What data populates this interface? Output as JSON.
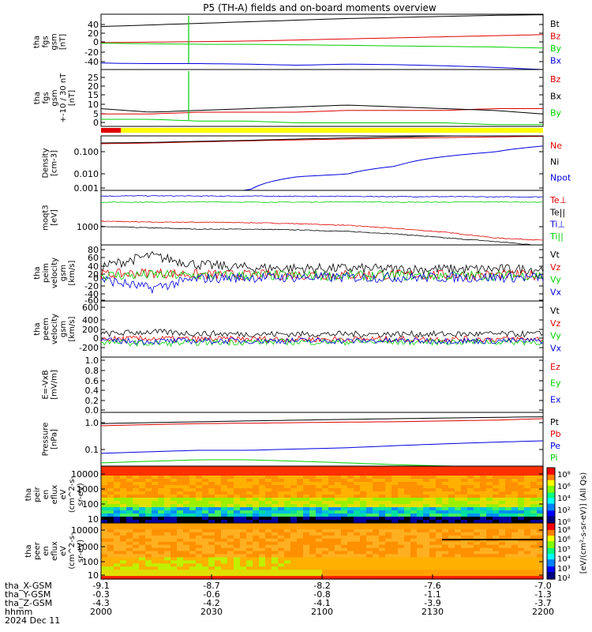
{
  "title": "P5 (TH-A) fields and on-board moments overview",
  "colors": {
    "black": "#000000",
    "red": "#e00000",
    "green": "#00d000",
    "blue": "#0000e0",
    "yellow": "#ffff00"
  },
  "chart_data": [
    {
      "id": "fgs_gsm",
      "type": "line",
      "ylabel": [
        "tha",
        "fgs",
        "gsm",
        "[nT]"
      ],
      "yticks": [
        "40",
        "20",
        "0",
        "-20",
        "-40"
      ],
      "ylim": [
        -48,
        55
      ],
      "series": [
        {
          "name": "Bt",
          "color": "black",
          "values": [
            32,
            35,
            38,
            41,
            44,
            47,
            49,
            51,
            53,
            54
          ]
        },
        {
          "name": "Bz",
          "color": "red",
          "values": [
            2,
            3,
            4,
            5,
            7,
            9,
            11,
            13,
            15,
            17
          ]
        },
        {
          "name": "By",
          "color": "green",
          "values": [
            1,
            0,
            -1,
            -1,
            -2,
            -3,
            -4,
            -5,
            -6,
            -8
          ]
        },
        {
          "name": "Bx",
          "color": "blue",
          "values": [
            -36,
            -37,
            -37,
            -38,
            -40,
            -38,
            -39,
            -41,
            -44,
            -48
          ]
        }
      ]
    },
    {
      "id": "fgs_gsm_zoom",
      "type": "line",
      "ylabel": [
        "tha",
        "fgs",
        "gsm",
        "+-10 / 30 nT",
        "[nT]"
      ],
      "yticks": [
        "25",
        "20",
        "15",
        "10",
        "5",
        "0"
      ],
      "ylim": [
        -3,
        29
      ],
      "series": [
        {
          "name": "Bz",
          "color": "red",
          "values": [
            4,
            4,
            5,
            5,
            5,
            6,
            6,
            6,
            7,
            7
          ]
        },
        {
          "name": "Bx",
          "color": "black",
          "values": [
            7,
            5,
            6,
            7,
            8,
            9,
            8,
            7,
            6,
            4
          ]
        },
        {
          "name": "By",
          "color": "green",
          "values": [
            1,
            1,
            0,
            0,
            -1,
            -1,
            -1,
            -1,
            -2,
            -2
          ]
        }
      ]
    },
    {
      "id": "density",
      "type": "line",
      "ylabel": [
        "Density",
        "[cm-3]"
      ],
      "yticks": [
        "0.100",
        "0.010",
        "0.001"
      ],
      "yscale": "log",
      "series": [
        {
          "name": "Ne",
          "color": "red",
          "values": [
            0.13,
            0.14,
            0.16,
            0.18,
            0.2,
            0.22,
            0.24,
            0.26,
            0.28,
            0.3
          ]
        },
        {
          "name": "Ni",
          "color": "black",
          "values": [
            0.14,
            0.15,
            0.17,
            0.19,
            0.22,
            0.25,
            0.28,
            0.31,
            0.34,
            0.38
          ]
        },
        {
          "name": "Npot",
          "color": "blue",
          "values": [
            0.0005,
            0.0005,
            0.0005,
            0.0006,
            0.003,
            0.004,
            0.01,
            0.03,
            0.05,
            0.1
          ]
        }
      ]
    },
    {
      "id": "temps",
      "type": "line",
      "ylabel": [
        "moqt3",
        "[eV]"
      ],
      "yticks": [
        "1000"
      ],
      "yscale": "log",
      "series": [
        {
          "name": "Te⊥",
          "color": "red",
          "values": [
            2100,
            2000,
            2000,
            1950,
            1850,
            1700,
            1450,
            1200,
            900,
            800
          ]
        },
        {
          "name": "Te||",
          "color": "black",
          "values": [
            1600,
            1500,
            1400,
            1400,
            1350,
            1250,
            1100,
            900,
            750,
            600
          ]
        },
        {
          "name": "Ti⊥",
          "color": "blue",
          "values": [
            7500,
            7600,
            7500,
            7500,
            7400,
            7400,
            7300,
            7300,
            7200,
            7200
          ]
        },
        {
          "name": "Ti||",
          "color": "green",
          "values": [
            5500,
            5500,
            5600,
            5500,
            5500,
            5600,
            5500,
            5500,
            5600,
            5500
          ]
        }
      ]
    },
    {
      "id": "peim_vel",
      "type": "line",
      "ylabel": [
        "tha",
        "peim",
        "velocity",
        "gsm",
        "[km/s]"
      ],
      "yticks": [
        "80",
        "60",
        "40",
        "20",
        "0",
        "-20",
        "-40",
        "-60"
      ],
      "ylim": [
        -70,
        85
      ],
      "series": [
        {
          "name": "Vt",
          "color": "black",
          "values": [
            25,
            55,
            30,
            22,
            20,
            20,
            18,
            18,
            18,
            18
          ]
        },
        {
          "name": "Vz",
          "color": "red",
          "values": [
            3,
            8,
            3,
            2,
            2,
            2,
            2,
            2,
            2,
            2
          ]
        },
        {
          "name": "Vy",
          "color": "green",
          "values": [
            0,
            2,
            0,
            0,
            0,
            0,
            0,
            0,
            0,
            0
          ]
        },
        {
          "name": "Vx",
          "color": "blue",
          "values": [
            -10,
            -35,
            -8,
            -5,
            -5,
            -5,
            -5,
            -5,
            -5,
            -5
          ]
        }
      ]
    },
    {
      "id": "peem_vel",
      "type": "line",
      "ylabel": [
        "tha",
        "peem",
        "velocity",
        "gsm",
        "[km/s]"
      ],
      "yticks": [
        "600",
        "400",
        "200",
        "0",
        "-200"
      ],
      "ylim": [
        -300,
        700
      ],
      "series": [
        {
          "name": "Vt",
          "color": "black",
          "values": [
            110,
            150,
            120,
            110,
            110,
            110,
            110,
            110,
            110,
            110
          ]
        },
        {
          "name": "Vz",
          "color": "red",
          "values": [
            20,
            30,
            20,
            20,
            20,
            20,
            20,
            20,
            20,
            20
          ]
        },
        {
          "name": "Vy",
          "color": "green",
          "values": [
            -30,
            -60,
            -40,
            -30,
            -30,
            -30,
            -30,
            -30,
            -30,
            -30
          ]
        },
        {
          "name": "Vx",
          "color": "blue",
          "values": [
            -10,
            -20,
            -10,
            -10,
            -10,
            -10,
            -10,
            -10,
            -10,
            -10
          ]
        }
      ]
    },
    {
      "id": "efield",
      "type": "line",
      "ylabel": [
        "E=-VxB",
        "[mV/m]"
      ],
      "yticks": [
        "1.0",
        "0.8",
        "0.6",
        "0.4",
        "0.2",
        "0.0"
      ],
      "ylim": [
        -0.05,
        1.05
      ],
      "series": [
        {
          "name": "Ez",
          "color": "red",
          "values": []
        },
        {
          "name": "Ey",
          "color": "green",
          "values": []
        },
        {
          "name": "Ex",
          "color": "blue",
          "values": []
        }
      ]
    },
    {
      "id": "pressure",
      "type": "line",
      "ylabel": [
        "Pressure",
        "[nPa]"
      ],
      "yticks": [
        "1.0",
        "0.1"
      ],
      "yscale": "log",
      "series": [
        {
          "name": "Pt",
          "color": "black",
          "values": [
            0.7,
            0.75,
            0.8,
            0.85,
            0.9,
            0.95,
            1.0,
            1.05,
            1.1,
            1.15
          ]
        },
        {
          "name": "Pb",
          "color": "red",
          "values": [
            0.6,
            0.65,
            0.7,
            0.72,
            0.75,
            0.78,
            0.8,
            0.85,
            0.9,
            1.0
          ]
        },
        {
          "name": "Pe",
          "color": "blue",
          "values": [
            0.08,
            0.09,
            0.1,
            0.1,
            0.11,
            0.12,
            0.14,
            0.16,
            0.18,
            0.2
          ]
        },
        {
          "name": "Pi",
          "color": "green",
          "values": [
            0.04,
            0.045,
            0.05,
            0.05,
            0.045,
            0.04,
            0.035,
            0.032,
            0.03,
            0.03
          ]
        }
      ]
    },
    {
      "id": "peir",
      "type": "heatmap",
      "ylabel": [
        "tha",
        "peir",
        "en",
        "eflux",
        "eV",
        "(cm^2-s-",
        "sr-eV)"
      ],
      "yticks": [
        "10000",
        "1000",
        "100",
        "10"
      ],
      "yscale": "log"
    },
    {
      "id": "peer",
      "type": "heatmap",
      "ylabel": [
        "tha",
        "peer",
        "en",
        "eflux",
        "eV",
        "(cm^2-s-",
        "sr-eV)"
      ],
      "yticks": [
        "10000",
        "1000",
        "100",
        "10"
      ],
      "yscale": "log"
    }
  ],
  "colorbar_ticks": [
    "10⁸",
    "10⁶",
    "10⁴",
    "10²",
    "10⁰",
    "10⁸",
    "10⁶",
    "10⁵",
    "10⁴",
    "10³",
    "10²"
  ],
  "colorbar_label": "[eV/(cm²-s-sr-eV)] (All Qs)",
  "xaxis": {
    "row_labels": [
      "tha_X-GSM",
      "tha_Y-GSM",
      "tha_Z-GSM",
      "hhmm",
      "2024 Dec 11"
    ],
    "ticks": [
      {
        "x": "-9.1",
        "y": "-0.3",
        "z": "-4.3",
        "t": "2000"
      },
      {
        "x": "-8.7",
        "y": "-0.6",
        "z": "-4.2",
        "t": "2030"
      },
      {
        "x": "-8.2",
        "y": "-0.8",
        "z": "-4.1",
        "t": "2100"
      },
      {
        "x": "-7.6",
        "y": "-1.1",
        "z": "-3.9",
        "t": "2130"
      },
      {
        "x": "-7.0",
        "y": "-1.3",
        "z": "-3.7",
        "t": "2200"
      }
    ]
  }
}
